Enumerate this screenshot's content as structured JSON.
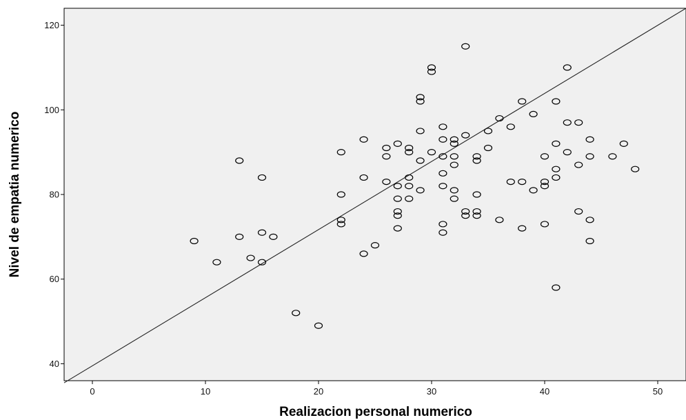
{
  "chart_data": {
    "type": "scatter",
    "title": "",
    "xlabel": "Realizacion personal numerico",
    "ylabel": "Nivel de empatia numerico",
    "xlim": [
      -2.5,
      52.5
    ],
    "ylim": [
      36,
      124
    ],
    "xticks": [
      0,
      10,
      20,
      30,
      40,
      50
    ],
    "yticks": [
      40,
      60,
      80,
      100,
      120
    ],
    "grid": false,
    "legend": "none",
    "colors": {
      "plot_background": "#f0f0f0",
      "marker": "#000000",
      "line": "#222222"
    },
    "fit_line": {
      "x": [
        -2.5,
        52.5
      ],
      "y": [
        35.5,
        124
      ]
    },
    "points": [
      [
        9,
        69
      ],
      [
        11,
        64
      ],
      [
        13,
        70
      ],
      [
        13,
        88
      ],
      [
        14,
        65
      ],
      [
        15,
        71
      ],
      [
        15,
        64
      ],
      [
        15,
        84
      ],
      [
        16,
        70
      ],
      [
        18,
        52
      ],
      [
        20,
        49
      ],
      [
        22,
        90
      ],
      [
        22,
        80
      ],
      [
        22,
        74
      ],
      [
        22,
        73
      ],
      [
        24,
        93
      ],
      [
        24,
        84
      ],
      [
        24,
        66
      ],
      [
        25,
        68
      ],
      [
        26,
        91
      ],
      [
        26,
        89
      ],
      [
        26,
        83
      ],
      [
        27,
        92
      ],
      [
        27,
        82
      ],
      [
        27,
        79
      ],
      [
        27,
        76
      ],
      [
        27,
        75
      ],
      [
        27,
        72
      ],
      [
        28,
        91
      ],
      [
        28,
        90
      ],
      [
        28,
        84
      ],
      [
        28,
        82
      ],
      [
        28,
        79
      ],
      [
        29,
        103
      ],
      [
        29,
        102
      ],
      [
        29,
        95
      ],
      [
        29,
        88
      ],
      [
        29,
        81
      ],
      [
        30,
        110
      ],
      [
        30,
        109
      ],
      [
        30,
        90
      ],
      [
        31,
        96
      ],
      [
        31,
        93
      ],
      [
        31,
        89
      ],
      [
        31,
        85
      ],
      [
        31,
        82
      ],
      [
        31,
        73
      ],
      [
        31,
        71
      ],
      [
        32,
        93
      ],
      [
        32,
        92
      ],
      [
        32,
        89
      ],
      [
        32,
        87
      ],
      [
        32,
        81
      ],
      [
        32,
        79
      ],
      [
        33,
        115
      ],
      [
        33,
        94
      ],
      [
        33,
        76
      ],
      [
        33,
        75
      ],
      [
        34,
        89
      ],
      [
        34,
        88
      ],
      [
        34,
        80
      ],
      [
        34,
        76
      ],
      [
        34,
        75
      ],
      [
        35,
        95
      ],
      [
        35,
        91
      ],
      [
        36,
        98
      ],
      [
        36,
        74
      ],
      [
        37,
        96
      ],
      [
        37,
        83
      ],
      [
        38,
        102
      ],
      [
        38,
        83
      ],
      [
        38,
        72
      ],
      [
        39,
        99
      ],
      [
        39,
        81
      ],
      [
        40,
        89
      ],
      [
        40,
        83
      ],
      [
        40,
        82
      ],
      [
        40,
        73
      ],
      [
        41,
        102
      ],
      [
        41,
        92
      ],
      [
        41,
        86
      ],
      [
        41,
        84
      ],
      [
        41,
        58
      ],
      [
        42,
        110
      ],
      [
        42,
        97
      ],
      [
        42,
        90
      ],
      [
        43,
        97
      ],
      [
        43,
        87
      ],
      [
        43,
        76
      ],
      [
        44,
        93
      ],
      [
        44,
        89
      ],
      [
        44,
        74
      ],
      [
        44,
        69
      ],
      [
        46,
        89
      ],
      [
        47,
        92
      ],
      [
        48,
        86
      ]
    ]
  }
}
